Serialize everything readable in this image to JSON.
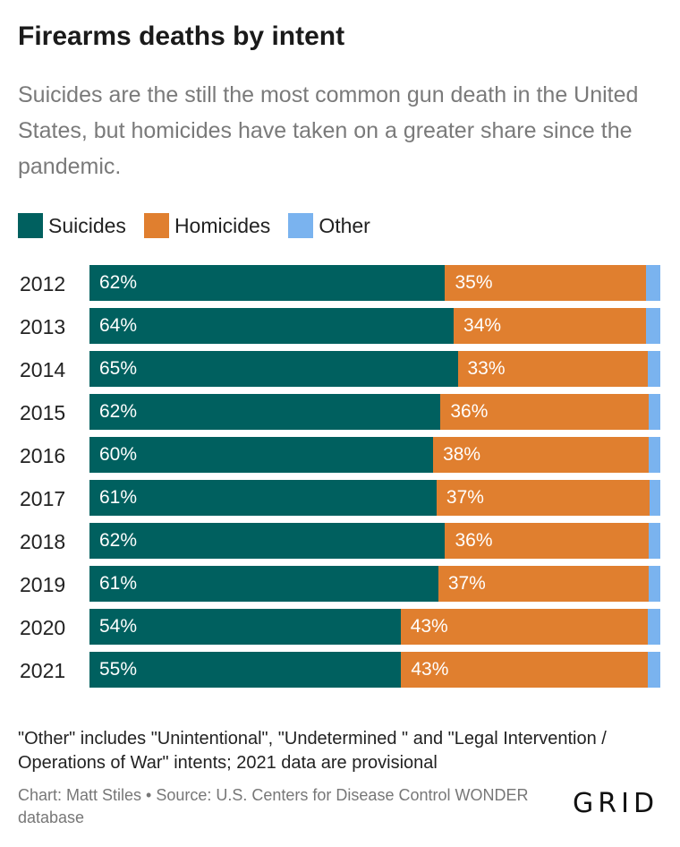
{
  "chart_data": {
    "type": "bar",
    "orientation": "horizontal",
    "stacked": true,
    "title": "Firearms deaths by intent",
    "subtitle": "Suicides are the still the most common gun death in the United States, but homicides have taken on a greater share since the pandemic.",
    "categories": [
      "2012",
      "2013",
      "2014",
      "2015",
      "2016",
      "2017",
      "2018",
      "2019",
      "2020",
      "2021"
    ],
    "series": [
      {
        "name": "Suicides",
        "color": "#00605f",
        "values": [
          62.3,
          63.8,
          64.5,
          61.5,
          60.2,
          60.8,
          62.3,
          61.1,
          54.5,
          54.6
        ],
        "labels": [
          "62%",
          "64%",
          "65%",
          "62%",
          "60%",
          "61%",
          "62%",
          "61%",
          "54%",
          "55%"
        ]
      },
      {
        "name": "Homicides",
        "color": "#e07f2f",
        "values": [
          35.2,
          33.7,
          33.3,
          36.4,
          37.8,
          37.3,
          35.7,
          36.8,
          43.3,
          43.2
        ],
        "labels": [
          "35%",
          "34%",
          "33%",
          "36%",
          "38%",
          "37%",
          "36%",
          "37%",
          "43%",
          "43%"
        ]
      },
      {
        "name": "Other",
        "color": "#7ab3ef",
        "values": [
          2.5,
          2.5,
          2.2,
          2.1,
          2.0,
          1.9,
          2.0,
          2.1,
          2.2,
          2.2
        ],
        "labels": [
          "",
          "",
          "",
          "",
          "",
          "",
          "",
          "",
          "",
          ""
        ]
      }
    ],
    "xlim": [
      0,
      100
    ],
    "legend": "top-left",
    "grid": false
  },
  "note": "\"Other\" includes \"Unintentional\", \"Undetermined \" and \"Legal Intervention / Operations of War\" intents; 2021 data are provisional",
  "source": "Chart: Matt Stiles • Source: U.S. Centers for Disease Control WONDER database",
  "logo_text": "GRID"
}
